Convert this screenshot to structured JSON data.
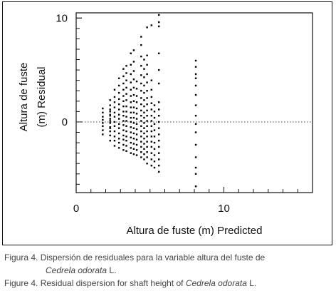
{
  "chart_data": {
    "type": "scatter",
    "xlabel": "Altura de fuste (m) Predicted",
    "ylabel_lines": [
      "Altura de fuste",
      "(m) Residual"
    ],
    "xlim": [
      0,
      16
    ],
    "ylim": [
      -6.8,
      10.5
    ],
    "x_major_ticks": [
      0,
      10
    ],
    "x_minor_step": 1,
    "y_major_ticks": [
      -6.8,
      0,
      10
    ],
    "y_minor_step": 1,
    "x_tick_labels": [
      "0",
      "10"
    ],
    "y_tick_labels": [
      "0",
      "10"
    ],
    "reference_line": {
      "y": 0,
      "style": "dotted"
    },
    "grid": false,
    "marker_color": "#000000",
    "columns": [
      {
        "x": 1.8,
        "y": [
          -1.2,
          -0.8,
          -0.4,
          -0.1,
          0.2,
          0.5,
          0.9,
          1.3
        ]
      },
      {
        "x": 2.3,
        "y": [
          -0.6,
          0.1,
          0.6,
          1.0
        ]
      },
      {
        "x": 2.3,
        "y": [
          -1.8,
          -1.3,
          -0.9,
          -0.5,
          -0.1,
          0.3,
          0.7,
          1.2,
          1.6,
          2.1
        ]
      },
      {
        "x": 2.6,
        "y": [
          -2.3,
          -1.8,
          -1.4,
          -0.9,
          -0.4,
          0.0,
          0.5,
          0.9,
          1.4,
          1.9,
          2.4,
          3.1
        ]
      },
      {
        "x": 2.9,
        "y": [
          -2.5,
          -2.0,
          -1.6,
          -1.1,
          -0.6,
          -0.2,
          0.3,
          0.7,
          1.2,
          1.7,
          2.2,
          2.8,
          3.5,
          4.2
        ]
      },
      {
        "x": 3.2,
        "y": [
          -2.7,
          -2.2,
          -1.7,
          -1.3,
          -0.8,
          -0.3,
          0.1,
          0.6,
          1.0,
          1.5,
          2.0,
          2.5,
          3.1,
          3.7,
          4.4,
          5.1
        ]
      },
      {
        "x": 3.4,
        "y": [
          -2.8,
          -2.3,
          -1.8,
          -1.4,
          -0.9,
          -0.4,
          0.1,
          0.5,
          1.0,
          1.5,
          2.1,
          2.7,
          3.3,
          4.0,
          4.7,
          5.4
        ]
      },
      {
        "x": 3.7,
        "y": [
          -3.0,
          -2.5,
          -2.0,
          -1.5,
          -1.0,
          -0.5,
          0.0,
          0.4,
          0.9,
          1.4,
          1.9,
          2.5,
          3.1,
          3.8,
          4.6,
          5.5,
          6.6
        ]
      },
      {
        "x": 3.9,
        "y": [
          -3.1,
          -2.6,
          -2.1,
          -1.6,
          -1.1,
          -0.6,
          -0.1,
          0.4,
          0.9,
          1.4,
          2.0,
          2.6,
          3.3,
          4.1,
          4.9,
          5.8,
          6.9
        ]
      },
      {
        "x": 4.1,
        "y": [
          -3.2,
          -2.7,
          -2.2,
          -1.7,
          -1.2,
          -0.7,
          -0.2,
          0.3,
          0.8,
          1.3,
          1.9,
          2.5,
          3.2,
          3.9
        ]
      },
      {
        "x": 4.4,
        "y": [
          -3.4,
          -2.9,
          -2.4,
          -1.9,
          -1.4,
          -0.9,
          -0.4,
          0.1,
          0.6,
          1.1,
          1.7,
          2.3,
          3.0,
          3.7,
          4.5,
          5.4,
          6.3,
          7.4,
          8.2
        ]
      },
      {
        "x": 4.6,
        "y": [
          -3.6,
          -3.1,
          -2.6,
          -2.1,
          -1.6,
          -1.1,
          -0.6,
          -0.1,
          0.4,
          0.9,
          1.5,
          2.1,
          2.8,
          3.5,
          4.3,
          5.1,
          6.0
        ]
      },
      {
        "x": 4.8,
        "y": [
          -4.0,
          -3.4,
          -2.9,
          -2.4,
          -1.9,
          -1.4,
          -0.9,
          -0.4,
          0.1,
          0.6,
          1.1,
          1.7,
          2.3,
          3.0,
          3.8,
          4.6,
          5.5,
          6.4,
          9.1
        ]
      },
      {
        "x": 5.1,
        "y": [
          -4.2,
          -3.6,
          -3.0,
          -2.4,
          -1.9,
          -1.4,
          -0.9,
          -0.4,
          0.1,
          0.6,
          1.2,
          1.8,
          2.4,
          3.1,
          4.0,
          9.3
        ]
      },
      {
        "x": 5.3,
        "y": [
          -4.4,
          -3.8,
          -3.2,
          -2.6,
          -2.0,
          -1.4,
          -0.8,
          -0.2,
          0.4,
          1.0,
          1.6
        ]
      },
      {
        "x": 5.6,
        "y": [
          -4.8,
          -4.2,
          -3.6,
          -3.0,
          -2.4,
          -1.8,
          -1.2,
          -0.6,
          0.0,
          0.6,
          1.2,
          1.9,
          3.7,
          5.0,
          6.6,
          9.2,
          9.6,
          10.3
        ]
      },
      {
        "x": 8.1,
        "y": [
          -6.2,
          -5.0,
          -4.4,
          -3.4,
          -2.2,
          -1.0,
          -0.2,
          0.6,
          1.6,
          2.6,
          3.5,
          4.2,
          4.6,
          5.3,
          5.9
        ]
      }
    ]
  },
  "captions": {
    "es_line1": "Figura 4. Dispersión de residuales para la variable altura del fuste de",
    "es_line2_species": "Cedrela odorata",
    "es_line2_suffix": " L.",
    "en_prefix": "Figure 4. Residual dispersion for shaft height of ",
    "en_species": "Cedrela odorata",
    "en_suffix": " L."
  }
}
